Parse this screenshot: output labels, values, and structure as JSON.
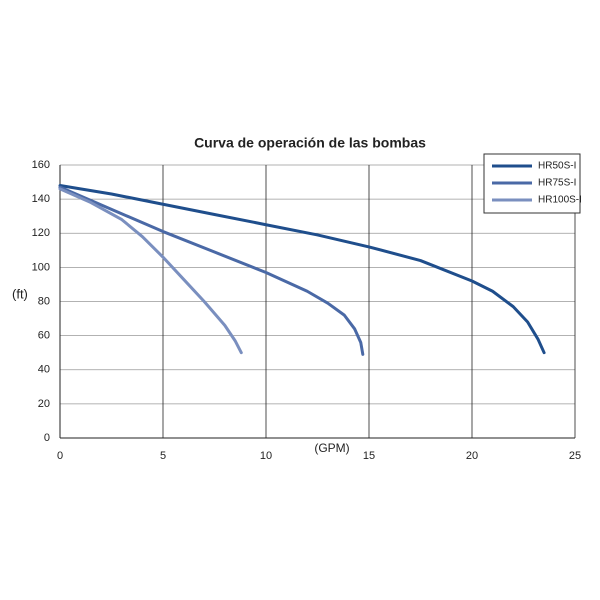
{
  "chart_data": {
    "type": "line",
    "title": "Curva de operación de las bombas",
    "ylabel": "(ft)",
    "xlabel": "(GPM)",
    "xlim": [
      0,
      25
    ],
    "xticks": [
      0,
      5,
      10,
      15,
      20,
      25
    ],
    "ylim": [
      0,
      160
    ],
    "yticks": [
      0,
      20,
      40,
      60,
      80,
      100,
      120,
      140,
      160
    ],
    "grid": true,
    "legend": "upper right",
    "series": [
      {
        "name": "HR50S-I",
        "color": "#1f4e8c",
        "x": [
          0,
          2.5,
          5,
          7.5,
          10,
          12.5,
          15,
          17.5,
          20,
          21,
          22,
          22.7,
          23.2,
          23.5
        ],
        "values": [
          148,
          143,
          137,
          131,
          125,
          119,
          112,
          104,
          92,
          86,
          77,
          68,
          58,
          50
        ]
      },
      {
        "name": "HR75S-I",
        "color": "#4a69a6",
        "x": [
          0,
          2.5,
          5,
          7.5,
          10,
          12,
          13,
          13.8,
          14.3,
          14.6,
          14.7
        ],
        "values": [
          147,
          134,
          121,
          109,
          97,
          86,
          79,
          72,
          64,
          56,
          49
        ]
      },
      {
        "name": "HR100S-I",
        "color": "#7a8fbf",
        "x": [
          0,
          1.5,
          3,
          4,
          5,
          6,
          7,
          8,
          8.5,
          8.8
        ],
        "values": [
          146,
          138,
          128,
          118,
          106,
          93,
          80,
          66,
          57,
          50
        ]
      }
    ]
  }
}
